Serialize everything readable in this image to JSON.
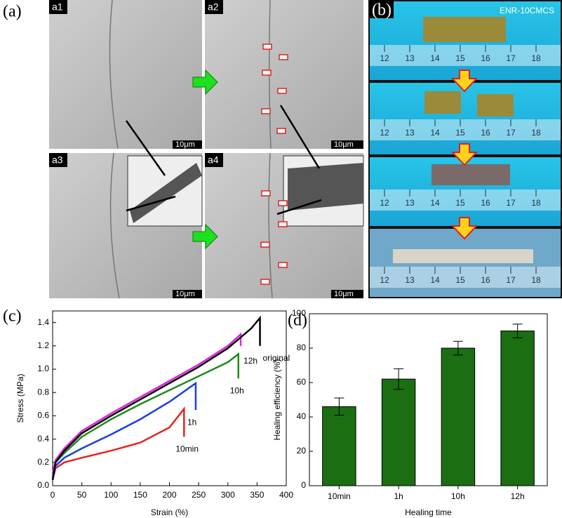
{
  "panels": {
    "labels": [
      "(a)",
      "(b)",
      "(c)",
      "(d)"
    ],
    "sub_labels": [
      "a1",
      "a2",
      "a3",
      "a4"
    ],
    "scale_bars": [
      "10μm",
      "10μm",
      "10μm",
      "10μm"
    ],
    "sample_name": "ENR-10CMCS",
    "ruler_labels": [
      "12",
      "13",
      "14",
      "15",
      "16",
      "17",
      "18"
    ]
  },
  "chart_data": [
    {
      "type": "line",
      "x_label": "Strain (%)",
      "y_label": "Stress (MPa)",
      "xlim": [
        0,
        400
      ],
      "xticks": [
        0,
        50,
        100,
        150,
        200,
        250,
        300,
        350,
        400
      ],
      "ylim": [
        0,
        1.5
      ],
      "yticks": [
        {
          "value": 0,
          "label": "0.0"
        },
        0.2,
        0.4,
        0.6,
        0.8,
        {
          "value": 1,
          "label": "1.0"
        },
        1.2,
        1.4
      ],
      "series": [
        {
          "name": "10min",
          "color": "#e8231c",
          "x": [
            0,
            5,
            20,
            50,
            100,
            150,
            200,
            225,
            225
          ],
          "values": [
            0.05,
            0.15,
            0.2,
            0.24,
            0.3,
            0.37,
            0.5,
            0.66,
            0.42
          ]
        },
        {
          "name": "1h",
          "color": "#1a3fe0",
          "x": [
            0,
            5,
            20,
            50,
            100,
            150,
            200,
            245,
            245
          ],
          "values": [
            0.05,
            0.17,
            0.24,
            0.32,
            0.44,
            0.57,
            0.72,
            0.88,
            0.65
          ]
        },
        {
          "name": "10h",
          "color": "#1f8a1f",
          "x": [
            0,
            5,
            20,
            50,
            100,
            150,
            200,
            250,
            300,
            318,
            318
          ],
          "values": [
            0.08,
            0.2,
            0.28,
            0.42,
            0.57,
            0.7,
            0.82,
            0.94,
            1.06,
            1.13,
            0.92
          ]
        },
        {
          "name": "12h",
          "color": "#e020e0",
          "x": [
            0,
            5,
            20,
            50,
            100,
            150,
            200,
            250,
            300,
            322,
            322
          ],
          "values": [
            0.1,
            0.22,
            0.32,
            0.47,
            0.62,
            0.76,
            0.9,
            1.04,
            1.2,
            1.3,
            1.2
          ]
        },
        {
          "name": "original",
          "color": "#000000",
          "x": [
            0,
            5,
            20,
            50,
            100,
            150,
            200,
            250,
            300,
            340,
            355,
            355
          ],
          "values": [
            0.05,
            0.2,
            0.3,
            0.45,
            0.6,
            0.74,
            0.88,
            1.02,
            1.18,
            1.35,
            1.44,
            1.2
          ]
        }
      ]
    },
    {
      "type": "bar",
      "x_label": "Healing time",
      "y_label": "Healing efficiency (%)",
      "categories": [
        "10min",
        "1h",
        "10h",
        "12h"
      ],
      "values": [
        46,
        62,
        80,
        90
      ],
      "errors": [
        5,
        6,
        4,
        4
      ],
      "color": "#1b6e12",
      "ylim": [
        0,
        100
      ],
      "yticks": [
        0,
        20,
        40,
        60,
        80,
        100
      ]
    }
  ]
}
